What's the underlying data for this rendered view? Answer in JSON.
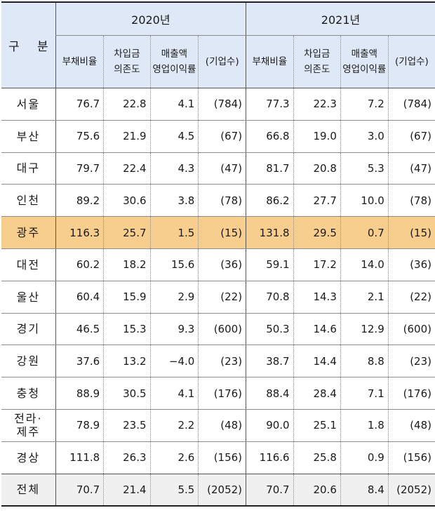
{
  "header": {
    "category": "구 분",
    "year1": "2020년",
    "year2": "2021년",
    "columns": [
      {
        "line1": "부채비율",
        "line2": ""
      },
      {
        "line1": "차입금",
        "line2": "의존도"
      },
      {
        "line1": "매출액",
        "line2": "영업이익률"
      },
      {
        "line1": "(기업수)",
        "line2": ""
      }
    ]
  },
  "rows": [
    {
      "region": "서울",
      "v": [
        "76.7",
        "22.8",
        "4.1",
        "(784)",
        "77.3",
        "22.3",
        "7.2",
        "(784)"
      ]
    },
    {
      "region": "부산",
      "v": [
        "75.6",
        "21.9",
        "4.5",
        "(67)",
        "66.8",
        "19.0",
        "3.0",
        "(67)"
      ]
    },
    {
      "region": "대구",
      "v": [
        "79.7",
        "22.4",
        "4.3",
        "(47)",
        "81.7",
        "20.8",
        "5.3",
        "(47)"
      ]
    },
    {
      "region": "인천",
      "v": [
        "89.2",
        "30.6",
        "3.8",
        "(78)",
        "86.2",
        "27.7",
        "10.0",
        "(78)"
      ]
    },
    {
      "region": "광주",
      "v": [
        "116.3",
        "25.7",
        "1.5",
        "(15)",
        "131.8",
        "29.5",
        "0.7",
        "(15)"
      ]
    },
    {
      "region": "대전",
      "v": [
        "60.2",
        "18.2",
        "15.6",
        "(36)",
        "59.1",
        "17.2",
        "14.0",
        "(36)"
      ]
    },
    {
      "region": "울산",
      "v": [
        "60.4",
        "15.9",
        "2.9",
        "(22)",
        "70.8",
        "14.3",
        "2.1",
        "(22)"
      ]
    },
    {
      "region": "경기",
      "v": [
        "46.5",
        "15.3",
        "9.3",
        "(600)",
        "50.3",
        "14.6",
        "12.9",
        "(600)"
      ]
    },
    {
      "region": "강원",
      "v": [
        "37.6",
        "13.2",
        "−4.0",
        "(23)",
        "38.7",
        "14.4",
        "8.8",
        "(23)"
      ]
    },
    {
      "region": "충청",
      "v": [
        "88.9",
        "30.5",
        "4.1",
        "(176)",
        "88.4",
        "28.4",
        "7.1",
        "(176)"
      ]
    },
    {
      "region": "전라·",
      "region2": "제주",
      "v": [
        "78.9",
        "23.5",
        "2.2",
        "(48)",
        "90.0",
        "25.1",
        "1.8",
        "(48)"
      ]
    },
    {
      "region": "경상",
      "v": [
        "111.8",
        "26.3",
        "2.6",
        "(156)",
        "116.6",
        "25.8",
        "0.9",
        "(156)"
      ]
    },
    {
      "region": "전체",
      "v": [
        "70.7",
        "21.4",
        "5.5",
        "(2052)",
        "70.7",
        "20.6",
        "8.4",
        "(2052)"
      ]
    }
  ],
  "highlight_row": "광주",
  "colors": {
    "header_bg": "#dfe8f6",
    "highlight_bg": "#f7ce8e",
    "total_bg": "#f0f0f0"
  }
}
